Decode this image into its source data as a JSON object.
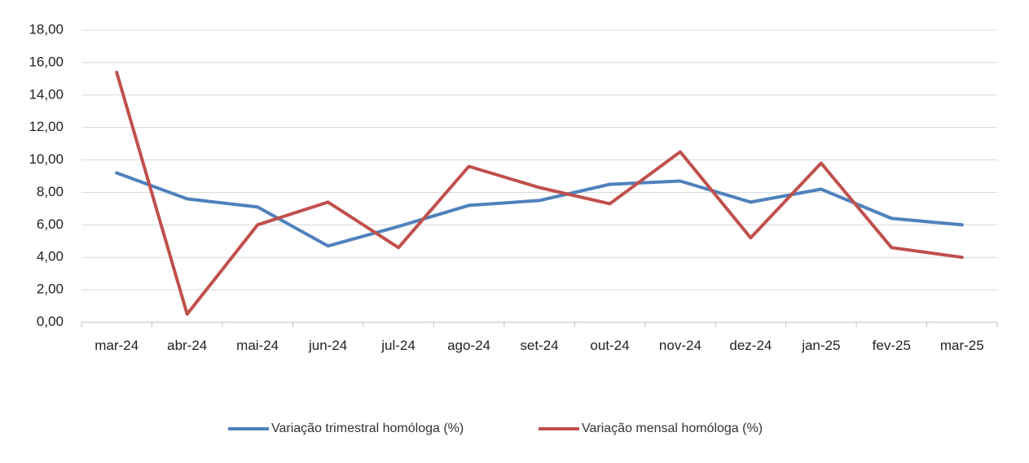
{
  "chart_data": {
    "type": "line",
    "categories": [
      "mar-24",
      "abr-24",
      "mai-24",
      "jun-24",
      "jul-24",
      "ago-24",
      "set-24",
      "out-24",
      "nov-24",
      "dez-24",
      "jan-25",
      "fev-25",
      "mar-25"
    ],
    "ylim": [
      0,
      18
    ],
    "yticks": [
      "0,00",
      "2,00",
      "4,00",
      "6,00",
      "8,00",
      "10,00",
      "12,00",
      "14,00",
      "16,00",
      "18,00"
    ],
    "grid": true,
    "legend_position": "bottom",
    "series": [
      {
        "name": "Variação trimestral homóloga (%)",
        "color": "#4F81BD",
        "values": [
          9.2,
          7.6,
          7.1,
          4.7,
          5.9,
          7.2,
          7.5,
          8.5,
          8.7,
          7.4,
          8.2,
          6.4,
          6.0
        ]
      },
      {
        "name": "Variação mensal homóloga (%)",
        "color": "#C0504D",
        "values": [
          15.4,
          0.5,
          6.0,
          7.4,
          4.6,
          9.6,
          8.3,
          7.3,
          10.5,
          5.2,
          9.8,
          4.6,
          4.0
        ]
      }
    ]
  }
}
